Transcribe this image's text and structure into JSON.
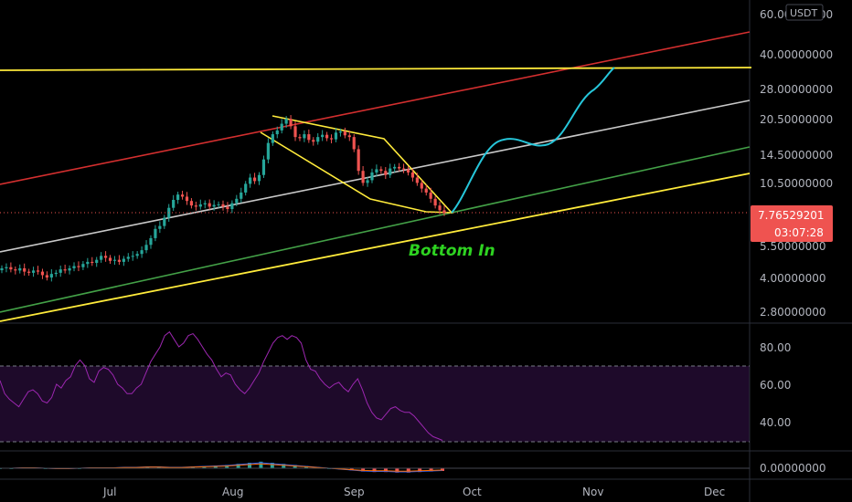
{
  "currency": "USDT",
  "colors": {
    "background": "#000000",
    "up": "#26a69a",
    "down": "#ef5350",
    "red_line": "#d32f2f",
    "white_line": "#c8c8c8",
    "green_line": "#43a047",
    "yellow_line": "#ffeb3b",
    "projection": "#26c6da",
    "rsi": "#9c27b0",
    "rsi_band": "#1e0a2a",
    "annotation": "#2ed321",
    "price_tag": "#ef5350"
  },
  "price_axis": {
    "ticks": [
      "60.00000000",
      "40.00000000",
      "28.00000000",
      "20.50000000",
      "14.50000000",
      "10.50000000",
      "7.76529201",
      "5.50000000",
      "4.00000000",
      "2.80000000"
    ],
    "current_price": "7.76529201",
    "countdown": "03:07:28"
  },
  "rsi_axis": {
    "ticks": [
      "80.00",
      "60.00",
      "40.00"
    ]
  },
  "macd_axis": {
    "ticks": [
      "0.00000000"
    ]
  },
  "time_axis": {
    "ticks": [
      "Jul",
      "Aug",
      "Sep",
      "Oct",
      "Nov",
      "Dec"
    ]
  },
  "annotation": {
    "text": "Bottom In"
  },
  "chart_data": {
    "type": "candlestick",
    "scale": "log",
    "symbol_currency": "USDT",
    "ylim": [
      2.5,
      62
    ],
    "x_ticks": [
      "Jul",
      "Aug",
      "Sep",
      "Oct",
      "Nov",
      "Dec"
    ],
    "candles_close": [
      4.4,
      4.45,
      4.35,
      4.3,
      4.4,
      4.25,
      4.2,
      4.3,
      4.25,
      4.1,
      4.0,
      4.15,
      4.2,
      4.35,
      4.3,
      4.4,
      4.5,
      4.45,
      4.6,
      4.7,
      4.65,
      4.8,
      5.0,
      4.9,
      4.75,
      4.8,
      4.7,
      4.85,
      4.95,
      5.0,
      5.1,
      5.3,
      5.6,
      6.0,
      6.6,
      6.8,
      7.4,
      8.2,
      8.9,
      9.4,
      9.2,
      8.8,
      8.4,
      8.3,
      8.5,
      8.6,
      8.3,
      8.45,
      8.5,
      8.3,
      8.1,
      8.6,
      9.0,
      9.6,
      10.5,
      11.2,
      10.8,
      11.5,
      13.5,
      16.0,
      17.5,
      18.2,
      19.5,
      20.5,
      19.0,
      17.0,
      16.8,
      17.5,
      16.5,
      16.2,
      17.0,
      17.4,
      16.8,
      16.6,
      17.8,
      18.0,
      17.3,
      17.0,
      15.0,
      12.0,
      10.6,
      10.9,
      11.8,
      12.2,
      12.0,
      11.5,
      12.3,
      12.5,
      12.3,
      12.2,
      11.8,
      11.2,
      10.6,
      10.0,
      9.6,
      9.0,
      8.4,
      8.0,
      7.77
    ],
    "current_price": 7.76529201,
    "trendlines": [
      {
        "name": "",
        "color": "red",
        "type": "ascending channel top"
      },
      {
        "name": "",
        "color": "white",
        "type": "ascending channel mid"
      },
      {
        "name": "",
        "color": "green",
        "type": "ascending channel"
      },
      {
        "name": "",
        "color": "yellow",
        "type": "ascending support"
      },
      {
        "name": "",
        "color": "yellow",
        "type": "horizontal resistance",
        "price": 33.5
      }
    ],
    "pattern": "falling wedge",
    "projection_target": 33.5,
    "annotations": [
      "Bottom In"
    ],
    "rsi": {
      "ylim": [
        25,
        92
      ],
      "bands": [
        30,
        70
      ],
      "ticks": [
        80,
        60,
        40
      ],
      "values": [
        62,
        55,
        52,
        50,
        48,
        52,
        56,
        57,
        55,
        51,
        50,
        53,
        60,
        58,
        62,
        64,
        70,
        73,
        70,
        63,
        61,
        67,
        69,
        68,
        65,
        60,
        58,
        55,
        55,
        58,
        60,
        66,
        72,
        76,
        80,
        86,
        88,
        84,
        80,
        82,
        86,
        87,
        84,
        80,
        76,
        73,
        68,
        64,
        66,
        65,
        60,
        57,
        55,
        58,
        62,
        66,
        72,
        77,
        82,
        85,
        86,
        84,
        86,
        85,
        82,
        73,
        68,
        67,
        63,
        60,
        58,
        60,
        61,
        58,
        56,
        60,
        63,
        57,
        50,
        45,
        42,
        41,
        44,
        47,
        48,
        46,
        45,
        45,
        43,
        40,
        37,
        34,
        32,
        31,
        30
      ]
    },
    "macd": {
      "ticks": [
        0
      ],
      "histogram": [
        0,
        0,
        0.1,
        0.1,
        0,
        -0.1,
        -0.1,
        0,
        0.1,
        0.1,
        0.1,
        0.2,
        0.2,
        0.3,
        0.3,
        0.2,
        0.2,
        0.3,
        0.4,
        0.5,
        0.6,
        0.8,
        1.0,
        1.2,
        1.0,
        0.8,
        0.6,
        0.4,
        0.2,
        0,
        -0.2,
        -0.4,
        -0.6,
        -0.7,
        -0.7,
        -0.8,
        -0.8,
        -0.7,
        -0.6,
        -0.5
      ]
    }
  }
}
